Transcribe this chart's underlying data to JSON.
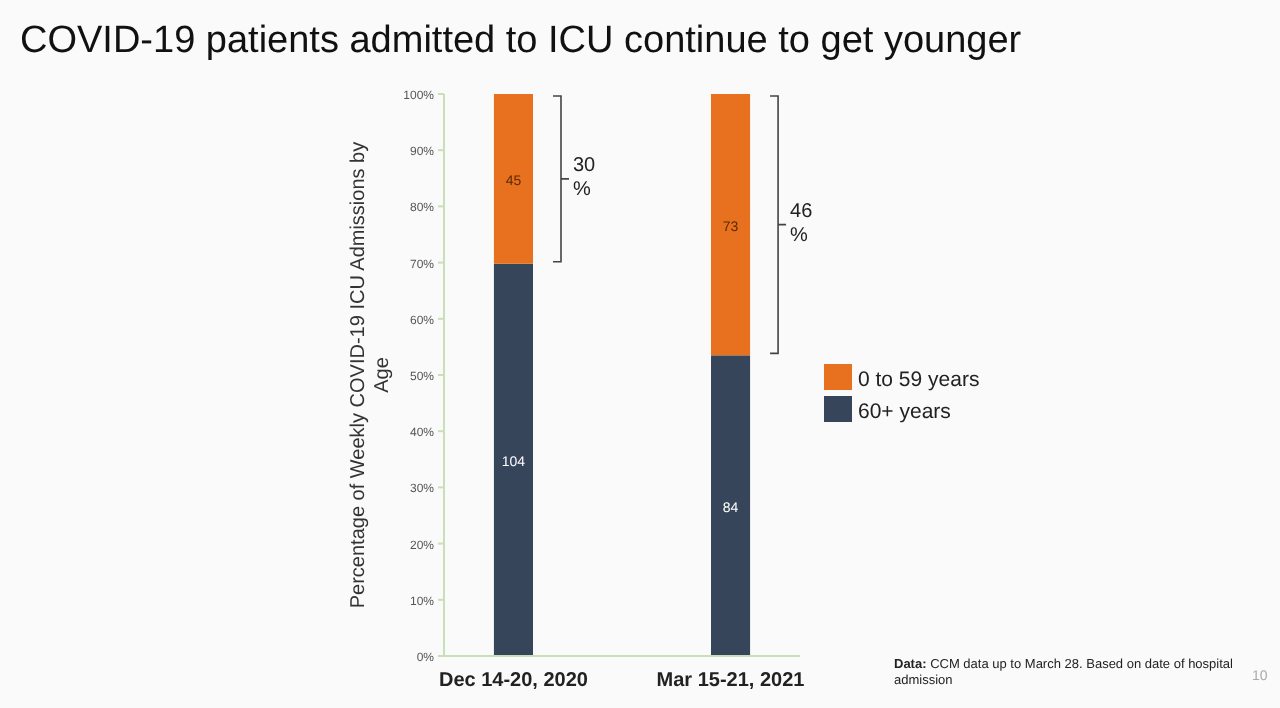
{
  "chart_data": {
    "type": "bar",
    "title": "COVID-19 patients admitted to ICU continue to get younger",
    "ylabel": "Percentage of Weekly COVID-19 ICU Admissions by Age",
    "categories": [
      "Dec 14-20, 2020",
      "Mar 15-21, 2021"
    ],
    "stacked": true,
    "series": [
      {
        "name": "60+ years",
        "color": "#364559",
        "values": [
          69.8,
          53.5
        ]
      },
      {
        "name": "0 to 59 years",
        "color": "#e8711f",
        "values": [
          30.2,
          46.5
        ]
      }
    ],
    "ylim": [
      0,
      100
    ],
    "yticks": [
      {
        "value": 0,
        "label": "0%"
      },
      {
        "value": 10,
        "label": "10%"
      },
      {
        "value": 20,
        "label": "20%"
      },
      {
        "value": 30,
        "label": "30%"
      },
      {
        "value": 40,
        "label": "40%"
      },
      {
        "value": 50,
        "label": "50%"
      },
      {
        "value": 60,
        "label": "60%"
      },
      {
        "value": 70,
        "label": "70%"
      },
      {
        "value": 80,
        "label": "80%"
      },
      {
        "value": 90,
        "label": "90%"
      },
      {
        "value": 100,
        "label": "100%"
      }
    ],
    "legend": "right",
    "grid": false,
    "annotations": [
      "104",
      "45",
      "84",
      "73",
      "30 %",
      "46 %",
      "Data: CCM data up to March 28. Based on date of hospital admission",
      "10"
    ]
  }
}
